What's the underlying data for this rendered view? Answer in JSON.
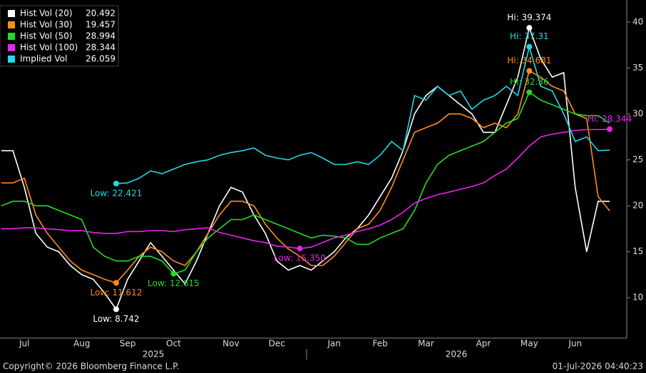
{
  "chart_data": {
    "type": "line",
    "categories": [
      null,
      null,
      "Jul",
      null,
      null,
      null,
      null,
      "Aug",
      null,
      null,
      null,
      "Sep",
      null,
      null,
      null,
      "Oct",
      null,
      null,
      null,
      null,
      "Nov",
      null,
      null,
      null,
      "Dec",
      null,
      null,
      null,
      null,
      "Jan",
      null,
      null,
      null,
      "Feb",
      null,
      null,
      null,
      "Mar",
      null,
      null,
      null,
      null,
      "Apr",
      null,
      null,
      null,
      "May",
      null,
      null,
      null,
      "Jun",
      null,
      null,
      null
    ],
    "years": [
      "2025",
      "2026"
    ],
    "ylim": [
      5.6,
      42.4
    ],
    "yticks": [
      10,
      15,
      20,
      25,
      30,
      35,
      40
    ],
    "series": [
      {
        "name": "Hist Vol (20)",
        "color": "#ffffff",
        "high_label": "Hi: 39.374",
        "low_label": "Low: 8.742",
        "values": [
          26,
          26,
          22,
          17,
          15.5,
          15,
          13.5,
          12.5,
          12,
          10.5,
          8.742,
          12,
          14,
          16,
          14.5,
          13,
          11.5,
          14,
          17,
          20,
          22,
          21.5,
          19,
          17,
          14,
          13,
          13.5,
          13,
          14,
          15,
          16.5,
          17.5,
          19,
          21,
          23,
          26,
          30,
          32,
          33,
          32,
          31,
          30,
          28,
          28,
          31,
          34,
          39.374,
          36,
          34,
          34.5,
          22,
          15,
          20.5,
          20.492
        ]
      },
      {
        "name": "Hist Vol (30)",
        "color": "#ff8c1a",
        "high_label": "Hi: 34.681",
        "low_label": "Low: 11.612",
        "values": [
          22.5,
          22.5,
          23,
          19,
          17,
          15.5,
          14,
          13,
          12.5,
          12,
          11.612,
          13,
          14.5,
          15.5,
          15,
          14,
          13.5,
          15,
          17,
          19,
          20.5,
          20.5,
          20,
          18,
          16.5,
          15.3,
          14.5,
          13.5,
          13.5,
          14.5,
          16,
          17.5,
          18,
          19.5,
          22,
          25,
          28,
          28.5,
          29,
          30,
          30,
          29.5,
          28.5,
          29,
          28.5,
          30,
          34.681,
          34,
          33,
          32.5,
          30,
          29.5,
          21,
          19.457
        ]
      },
      {
        "name": "Hist Vol (50)",
        "color": "#22dd22",
        "high_label": "Hi: 32.36",
        "low_label": "Low: 12.615",
        "values": [
          20,
          20.5,
          20.5,
          20,
          20,
          19.5,
          19,
          18.5,
          15.5,
          14.5,
          14,
          14,
          14.5,
          14.5,
          14,
          12.615,
          13,
          15,
          16.5,
          17.5,
          18.5,
          18.5,
          19,
          18.5,
          18,
          17.5,
          17,
          16.5,
          16.8,
          16.7,
          16.5,
          15.8,
          15.8,
          16.5,
          17,
          17.5,
          19.5,
          22.5,
          24.5,
          25.5,
          26,
          26.5,
          27,
          28,
          29,
          29.5,
          32.36,
          31.5,
          31,
          30.5,
          30,
          29.8,
          29.8,
          28.994
        ]
      },
      {
        "name": "Hist Vol (100)",
        "color": "#ee22ee",
        "high_label": "Hi: 28.344",
        "low_label": "Low: 15.350",
        "values": [
          17.5,
          17.5,
          17.6,
          17.6,
          17.5,
          17.4,
          17.3,
          17.3,
          17.1,
          17.0,
          17.0,
          17.2,
          17.2,
          17.3,
          17.3,
          17.2,
          17.4,
          17.5,
          17.6,
          17.1,
          16.8,
          16.5,
          16.2,
          16.0,
          15.6,
          15.5,
          15.35,
          15.5,
          16.0,
          16.5,
          16.8,
          17.2,
          17.5,
          17.9,
          18.5,
          19.3,
          20.3,
          20.8,
          21.2,
          21.5,
          21.8,
          22.1,
          22.5,
          23.3,
          24.0,
          25.2,
          26.5,
          27.5,
          27.8,
          28.0,
          28.2,
          28.3,
          28.3,
          28.344
        ]
      },
      {
        "name": "Implied Vol",
        "color": "#22d8e8",
        "high_label": "Hi: 37.31",
        "low_label": "Low: 22.421",
        "values": [
          null,
          null,
          null,
          null,
          null,
          null,
          null,
          null,
          null,
          null,
          22.421,
          22.5,
          23,
          23.8,
          23.5,
          24,
          24.5,
          24.8,
          25,
          25.5,
          25.8,
          26,
          26.3,
          25.5,
          25.2,
          25,
          25.5,
          25.8,
          25.2,
          24.5,
          24.5,
          24.8,
          24.5,
          25.5,
          27,
          26,
          32,
          31.5,
          33,
          32,
          32.5,
          30.5,
          31.5,
          32,
          33,
          32,
          37.31,
          33,
          32.5,
          30,
          27,
          27.5,
          26,
          26.059
        ]
      }
    ],
    "footer_left": "Copyright© 2026 Bloomberg Finance L.P.",
    "footer_right": "01-Jul-2026 04:40:23"
  }
}
